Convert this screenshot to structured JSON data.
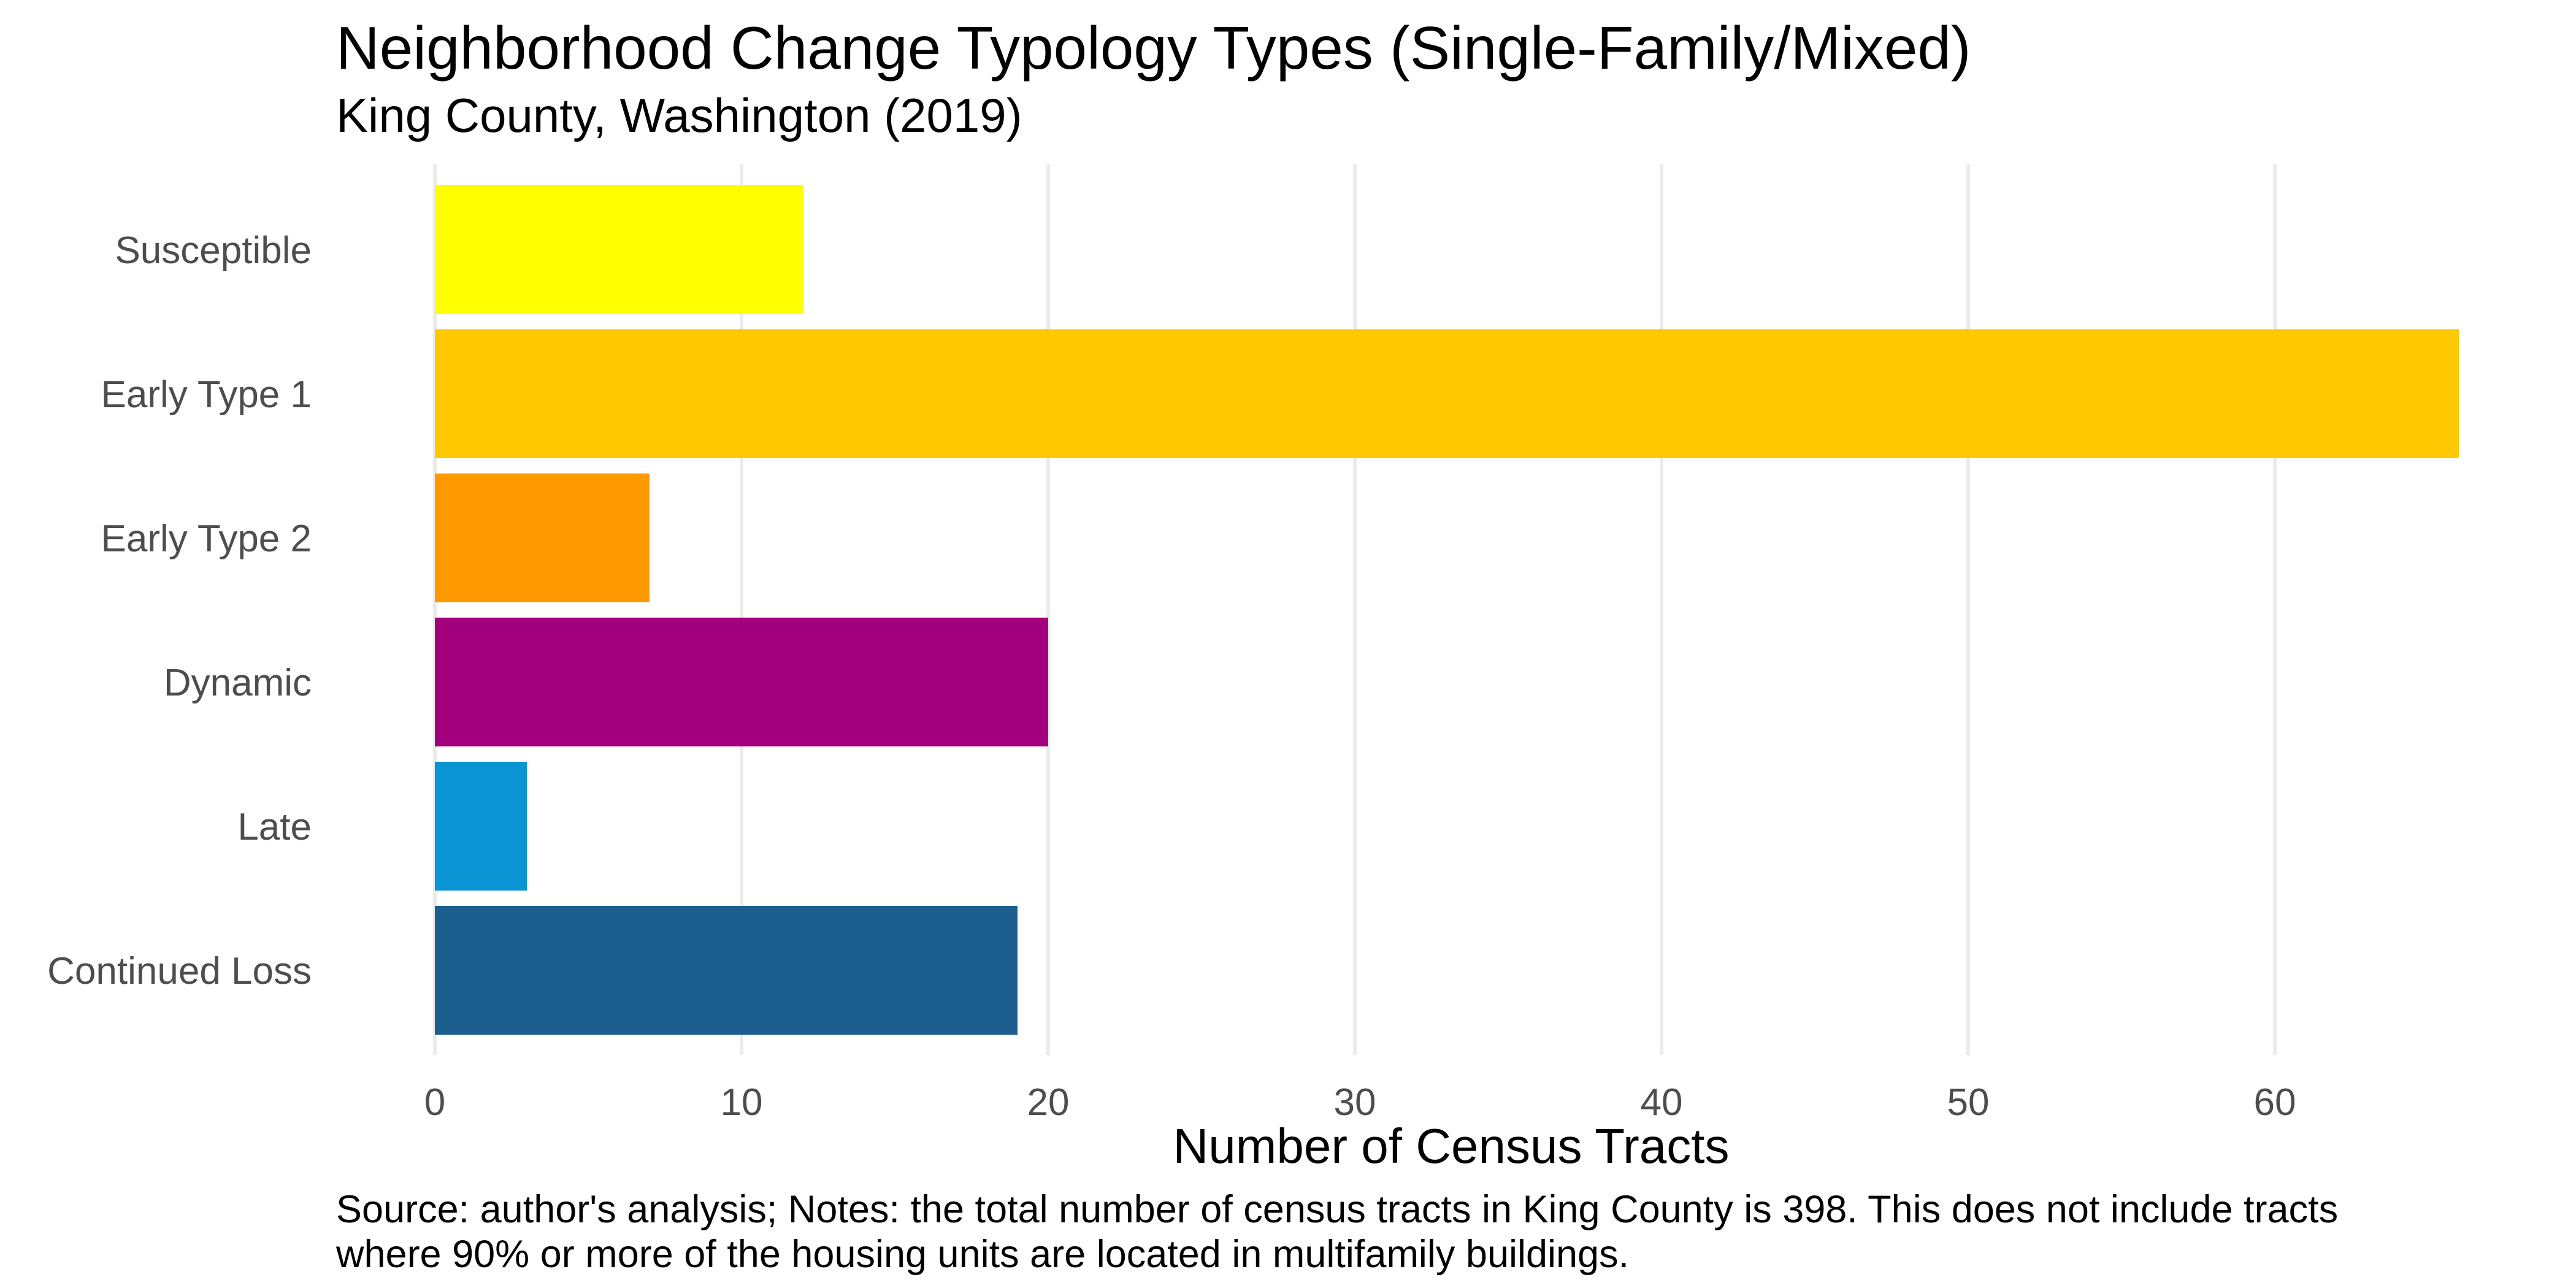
{
  "chart_data": {
    "type": "bar",
    "orientation": "horizontal",
    "title": "Neighborhood Change Typology Types (Single-Family/Mixed)",
    "subtitle": "King County, Washington (2019)",
    "xlabel": "Number of Census Tracts",
    "ylabel": "",
    "categories": [
      "Susceptible",
      "Early Type 1",
      "Early Type 2",
      "Dynamic",
      "Late",
      "Continued Loss"
    ],
    "values": [
      12,
      66,
      7,
      20,
      3,
      19
    ],
    "colors": [
      "#FFFF00",
      "#FFC800",
      "#FF9900",
      "#A3007E",
      "#0B94D3",
      "#1C5F8E"
    ],
    "xlim": [
      0,
      67
    ],
    "x_ticks": [
      0,
      10,
      20,
      30,
      40,
      50,
      60
    ],
    "grid": "vertical major",
    "legend": "none",
    "caption": "Source: author's analysis; Notes: the total number of census tracts in King County is 398. This does not include tracts where 90% or more of the housing units are located in multifamily buildings.",
    "caption_lines": [
      "Source: author's analysis; Notes: the total number of census tracts in King County is 398. This does not include tracts",
      "where 90% or more of the housing units are located in multifamily buildings."
    ]
  }
}
